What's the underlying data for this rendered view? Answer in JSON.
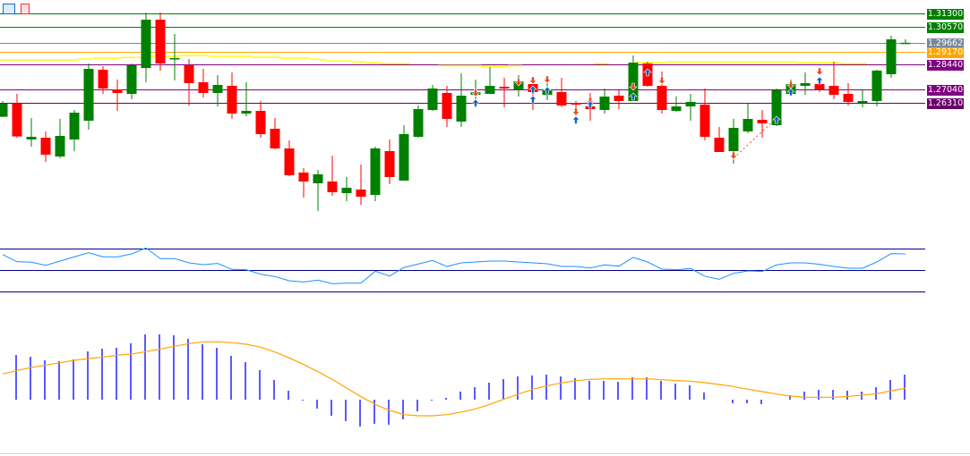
{
  "toolbar": {
    "icons": [
      "object-list-icon",
      "chart-properties-icon"
    ]
  },
  "colors": {
    "bull": "#008000",
    "bear": "#FF0000",
    "up_signal": "#1560BD",
    "down_signal": "#E8451E",
    "rsi": "#1E90FF",
    "rsi_levels": "#00008B",
    "macd_hist": "#0000FF",
    "macd_signal": "#FFA500",
    "moving_avg": "#FFFF00"
  },
  "price_levels": [
    {
      "price": 1.313,
      "label": "1.31300",
      "color": "#008000"
    },
    {
      "price": 1.3057,
      "label": "1.30570",
      "color": "#008000"
    },
    {
      "price": 1.29662,
      "label": "1.29662",
      "color": "#778899"
    },
    {
      "price": 1.2917,
      "label": "1.29170",
      "color": "#FFA500"
    },
    {
      "price": 1.2844,
      "label": "1.28440",
      "color": "#800080"
    },
    {
      "price": 1.2704,
      "label": "1.27040",
      "color": "#800080"
    },
    {
      "price": 1.2631,
      "label": "1.26310",
      "color": "#6B006B"
    }
  ],
  "chart_data": [
    {
      "type": "candlestick",
      "panel": "price",
      "ylim": [
        1.2,
        1.3205
      ],
      "grid": false,
      "ohlc": [
        [
          1.2552,
          1.264,
          1.255,
          1.2626
        ],
        [
          1.2626,
          1.268,
          1.2435,
          1.2442
        ],
        [
          1.2425,
          1.2545,
          1.2385,
          1.244
        ],
        [
          1.2435,
          1.247,
          1.23,
          1.234
        ],
        [
          1.233,
          1.254,
          1.232,
          1.2445
        ],
        [
          1.2425,
          1.259,
          1.236,
          1.2575
        ],
        [
          1.253,
          1.285,
          1.248,
          1.282
        ],
        [
          1.2815,
          1.2835,
          1.268,
          1.271
        ],
        [
          1.2705,
          1.276,
          1.2585,
          1.2685
        ],
        [
          1.268,
          1.285,
          1.265,
          1.284
        ],
        [
          1.2825,
          1.3135,
          1.2745,
          1.3095
        ],
        [
          1.3095,
          1.3135,
          1.281,
          1.285
        ],
        [
          1.2875,
          1.3015,
          1.2755,
          1.288
        ],
        [
          1.284,
          1.2875,
          1.2615,
          1.274
        ],
        [
          1.2745,
          1.282,
          1.266,
          1.2685
        ],
        [
          1.2685,
          1.2785,
          1.261,
          1.273
        ],
        [
          1.2725,
          1.28,
          1.254,
          1.257
        ],
        [
          1.257,
          1.2745,
          1.2555,
          1.2585
        ],
        [
          1.2585,
          1.264,
          1.2435,
          1.2455
        ],
        [
          1.2485,
          1.2545,
          1.237,
          1.2375
        ],
        [
          1.2375,
          1.242,
          1.222,
          1.2225
        ],
        [
          1.224,
          1.2265,
          1.21,
          1.219
        ],
        [
          1.218,
          1.2255,
          1.2025,
          1.223
        ],
        [
          1.219,
          1.2335,
          1.211,
          1.213
        ],
        [
          1.2125,
          1.2215,
          1.208,
          1.2155
        ],
        [
          1.2145,
          1.2285,
          1.206,
          1.2105
        ],
        [
          1.2115,
          1.2385,
          1.208,
          1.2375
        ],
        [
          1.236,
          1.2425,
          1.2175,
          1.2215
        ],
        [
          1.2195,
          1.2505,
          1.2195,
          1.2455
        ],
        [
          1.244,
          1.2615,
          1.2435,
          1.2595
        ],
        [
          1.259,
          1.273,
          1.2585,
          1.271
        ],
        [
          1.2685,
          1.2725,
          1.2495,
          1.254
        ],
        [
          1.2525,
          1.2795,
          1.2495,
          1.267
        ],
        [
          1.2675,
          1.276,
          1.2605,
          1.269
        ],
        [
          1.268,
          1.283,
          1.268,
          1.2725
        ],
        [
          1.272,
          1.277,
          1.2605,
          1.271
        ],
        [
          1.2705,
          1.2785,
          1.2665,
          1.275
        ],
        [
          1.2735,
          1.276,
          1.259,
          1.269
        ],
        [
          1.2675,
          1.2775,
          1.2645,
          1.2705
        ],
        [
          1.269,
          1.277,
          1.2605,
          1.2615
        ],
        [
          1.263,
          1.264,
          1.251,
          1.262
        ],
        [
          1.261,
          1.2685,
          1.253,
          1.2595
        ],
        [
          1.259,
          1.271,
          1.257,
          1.2665
        ],
        [
          1.267,
          1.27,
          1.2595,
          1.264
        ],
        [
          1.264,
          1.2895,
          1.264,
          1.2855
        ],
        [
          1.285,
          1.286,
          1.272,
          1.2725
        ],
        [
          1.2725,
          1.2805,
          1.257,
          1.259
        ],
        [
          1.2585,
          1.2665,
          1.258,
          1.261
        ],
        [
          1.261,
          1.268,
          1.253,
          1.2635
        ],
        [
          1.262,
          1.271,
          1.242,
          1.244
        ],
        [
          1.2435,
          1.2495,
          1.2355,
          1.2355
        ],
        [
          1.236,
          1.254,
          1.229,
          1.249
        ],
        [
          1.247,
          1.2625,
          1.246,
          1.254
        ],
        [
          1.2535,
          1.259,
          1.2435,
          1.2515
        ],
        [
          1.2505,
          1.271,
          1.25,
          1.27
        ],
        [
          1.268,
          1.276,
          1.2675,
          1.2735
        ],
        [
          1.2725,
          1.28,
          1.2675,
          1.274
        ],
        [
          1.2735,
          1.2755,
          1.269,
          1.2705
        ],
        [
          1.2725,
          1.286,
          1.265,
          1.2675
        ],
        [
          1.268,
          1.274,
          1.2615,
          1.2635
        ],
        [
          1.263,
          1.27,
          1.2605,
          1.264
        ],
        [
          1.264,
          1.2815,
          1.261,
          1.281
        ],
        [
          1.279,
          1.3005,
          1.277,
          1.2985
        ],
        [
          1.2965,
          1.2985,
          1.2965,
          1.2966
        ]
      ],
      "moving_average_steps": [
        [
          0.8,
          6.3,
          1.287
        ],
        [
          6.3,
          7.3,
          1.2875
        ],
        [
          7.3,
          9.3,
          1.288
        ],
        [
          9.3,
          11.25,
          1.2884
        ],
        [
          11.25,
          13.3,
          1.289
        ],
        [
          13.3,
          15.4,
          1.2895
        ],
        [
          15.4,
          18.4,
          1.289
        ],
        [
          18.4,
          20.4,
          1.2885
        ],
        [
          20.4,
          22.4,
          1.288
        ],
        [
          22.4,
          23.1,
          1.2874
        ],
        [
          23.1,
          23.6,
          1.287
        ],
        [
          23.6,
          25.4,
          1.2864
        ],
        [
          25.4,
          26.3,
          1.2859
        ],
        [
          26.3,
          27.4,
          1.2854
        ],
        [
          27.4,
          29.4,
          1.2849
        ],
        [
          31.4,
          34.4,
          1.2838
        ],
        [
          34.4,
          36.25,
          1.2832
        ],
        [
          36.25,
          37.25,
          1.2838
        ],
        [
          42.3,
          43.3,
          1.2849
        ],
        [
          45.2,
          47.25,
          1.2855
        ],
        [
          47.25,
          56.4,
          1.2859
        ],
        [
          56.4,
          59.4,
          1.2854
        ],
        [
          59.4,
          61.3,
          1.2849
        ]
      ],
      "signals": [
        {
          "bar": 34,
          "dir": "down",
          "price": 1.2685
        },
        {
          "bar": 34,
          "dir": "up",
          "price": 1.263
        },
        {
          "bar": 37,
          "dir": "down",
          "price": 1.2745
        },
        {
          "bar": 38,
          "dir": "down",
          "price": 1.2755
        },
        {
          "bar": 38,
          "dir": "up",
          "price": 1.2705
        },
        {
          "bar": 38,
          "dir": "up",
          "price": 1.265
        },
        {
          "bar": 39,
          "dir": "down",
          "price": 1.276
        },
        {
          "bar": 39,
          "dir": "up",
          "price": 1.27
        },
        {
          "bar": 41,
          "dir": "down",
          "price": 1.258
        },
        {
          "bar": 41,
          "dir": "up",
          "price": 1.2535
        },
        {
          "bar": 42,
          "dir": "down",
          "price": 1.264
        },
        {
          "bar": 42,
          "dir": "up",
          "price": 1.262
        },
        {
          "bar": 45,
          "dir": "down",
          "price": 1.272
        },
        {
          "bar": 45,
          "dir": "up",
          "price": 1.2665
        },
        {
          "bar": 46,
          "dir": "up",
          "price": 1.28
        },
        {
          "bar": 47,
          "dir": "down",
          "price": 1.2755
        },
        {
          "bar": 52,
          "dir": "down",
          "price": 1.2335
        },
        {
          "bar": 55,
          "dir": "up",
          "price": 1.2535
        },
        {
          "bar": 56,
          "dir": "down",
          "price": 1.273
        },
        {
          "bar": 56,
          "dir": "up",
          "price": 1.269
        },
        {
          "bar": 58,
          "dir": "down",
          "price": 1.2805
        },
        {
          "bar": 58,
          "dir": "up",
          "price": 1.2755
        }
      ],
      "trend_line": {
        "from": {
          "bar": 52,
          "price": 1.232
        },
        "to": {
          "bar": 55,
          "price": 1.2545
        },
        "style": "dashed",
        "color": "#E8451E"
      }
    },
    {
      "type": "line",
      "panel": "rsi",
      "levels": [
        70,
        50,
        30
      ],
      "values": [
        64.4,
        57.8,
        57.3,
        54.4,
        58.3,
        62.3,
        66.1,
        62.3,
        62.3,
        65,
        70.6,
        60.6,
        60.6,
        56.7,
        55,
        56.1,
        50.6,
        50.3,
        46.1,
        43.9,
        40,
        38.9,
        40.6,
        37.3,
        37.8,
        37.8,
        48.9,
        44.4,
        52.3,
        55.6,
        58.9,
        53.3,
        56.7,
        57.5,
        58.3,
        58.3,
        57.5,
        56.7,
        55.8,
        53.3,
        53.3,
        51.9,
        54.8,
        53.6,
        61.7,
        57.5,
        50.8,
        50.3,
        51.4,
        44.2,
        41.4,
        46.9,
        49.2,
        48.6,
        54.8,
        56.7,
        56.7,
        55.3,
        53.3,
        51.7,
        51.7,
        57.5,
        65.3,
        65
      ]
    },
    {
      "type": "bar",
      "panel": "macd",
      "histogram": [
        0,
        0.0015,
        0.00144,
        0.00132,
        0.00129,
        0.00135,
        0.00162,
        0.00171,
        0.00174,
        0.00189,
        0.00219,
        0.00219,
        0.00216,
        0.00204,
        0.00186,
        0.00174,
        0.00147,
        0.00126,
        0.00099,
        0.00066,
        0.0003,
        -3e-05,
        -0.0003,
        -0.00054,
        -0.00072,
        -0.0009,
        -0.00081,
        -0.00084,
        -0.00066,
        -0.00039,
        -3e-05,
        6e-05,
        0.00027,
        0.00042,
        0.00057,
        0.00069,
        0.00078,
        0.00081,
        0.00084,
        0.00078,
        0.00072,
        0.00063,
        0.00063,
        0.0006,
        0.00075,
        0.00075,
        0.00063,
        0.00054,
        0.00048,
        0.00024,
        0,
        -0.00012,
        -0.00012,
        -0.00015,
        0,
        0.00015,
        0.00027,
        0.00033,
        0.00033,
        0.0003,
        0.00027,
        0.00042,
        0.00066,
        0.00084
      ],
      "signal": [
        0.00086,
        0.00098,
        0.00108,
        0.00116,
        0.00124,
        0.00132,
        0.00138,
        0.00143,
        0.00149,
        0.00153,
        0.00161,
        0.0017,
        0.00179,
        0.00188,
        0.00194,
        0.00194,
        0.00191,
        0.00186,
        0.00176,
        0.0016,
        0.0014,
        0.00118,
        0.00094,
        0.00068,
        0.00039,
        0.0001,
        -0.00016,
        -0.00036,
        -0.0005,
        -0.00054,
        -0.00054,
        -0.0005,
        -0.00042,
        -0.00031,
        -0.00016,
        2e-05,
        0.00019,
        0.00035,
        0.00047,
        0.00056,
        0.00064,
        0.00068,
        0.0007,
        0.0007,
        0.0007,
        0.0007,
        0.00067,
        0.00064,
        0.00062,
        0.00057,
        0.00051,
        0.00044,
        0.00035,
        0.00027,
        0.00019,
        0.00012,
        8e-05,
        8e-05,
        8e-05,
        0.00011,
        0.00015,
        0.0002,
        0.0003,
        0.00038
      ]
    }
  ]
}
